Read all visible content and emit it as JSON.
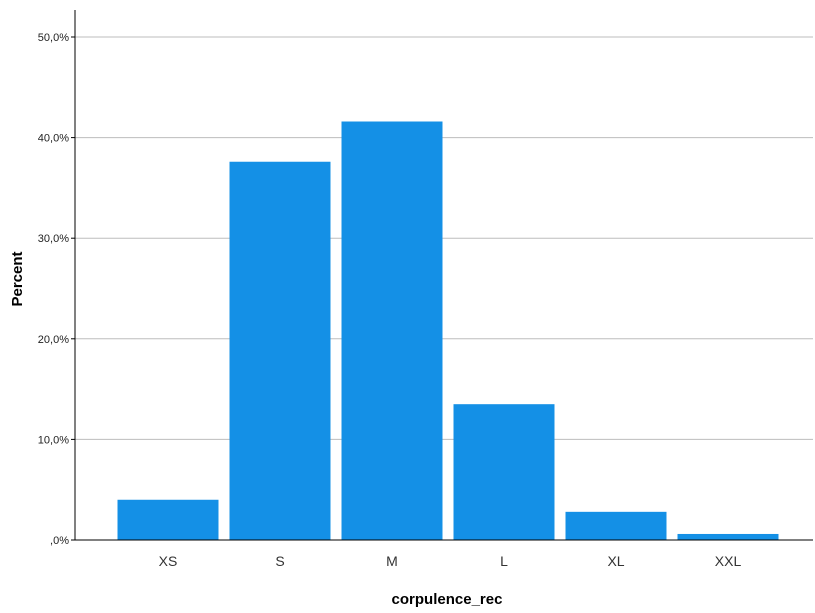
{
  "chart_data": {
    "type": "bar",
    "categories": [
      "XS",
      "S",
      "M",
      "L",
      "XL",
      "XXL"
    ],
    "values": [
      4.0,
      37.6,
      41.6,
      13.5,
      2.8,
      0.6
    ],
    "xlabel": "corpulence_rec",
    "ylabel": "Percent",
    "ylim": [
      0,
      52
    ],
    "yticks": [
      0,
      10,
      20,
      30,
      40,
      50
    ],
    "ytick_labels": [
      ",0%",
      "10,0%",
      "20,0%",
      "30,0%",
      "40,0%",
      "50,0%"
    ],
    "grid": true,
    "bar_color": "#1490E6",
    "grid_color": "#BDBDBD"
  }
}
